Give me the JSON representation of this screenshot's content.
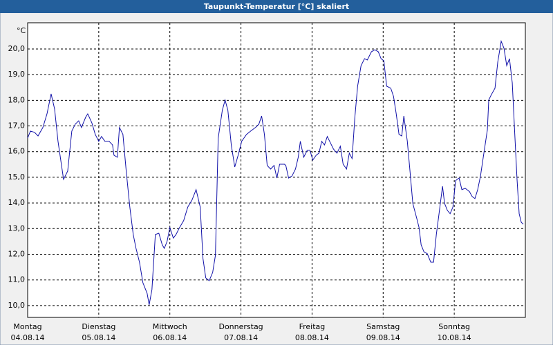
{
  "chart_data": {
    "type": "line",
    "title": "Taupunkt-Temperatur [°C] skaliert",
    "y_unit": "°C",
    "color": "#1010a8",
    "grid": true,
    "xlim": [
      0,
      7
    ],
    "ylim": [
      9.54,
      21.02
    ],
    "xticks": [
      {
        "value": 0,
        "label": "Montag"
      },
      {
        "value": 1,
        "label": "Dienstag"
      },
      {
        "value": 2,
        "label": "Mittwoch"
      },
      {
        "value": 3,
        "label": "Donnerstag"
      },
      {
        "value": 4,
        "label": "Freitag"
      },
      {
        "value": 5,
        "label": "Samstag"
      },
      {
        "value": 6,
        "label": "Sonntag"
      }
    ],
    "xtick_dates": [
      "04.08.14",
      "05.08.14",
      "06.08.14",
      "07.08.14",
      "08.08.14",
      "09.08.14",
      "10.08.14"
    ],
    "yticks": [
      {
        "value": 10,
        "label": "10,0"
      },
      {
        "value": 11,
        "label": "11,0"
      },
      {
        "value": 12,
        "label": "12,0"
      },
      {
        "value": 13,
        "label": "13,0"
      },
      {
        "value": 14,
        "label": "14,0"
      },
      {
        "value": 15,
        "label": "15,0"
      },
      {
        "value": 16,
        "label": "16,0"
      },
      {
        "value": 17,
        "label": "17,0"
      },
      {
        "value": 18,
        "label": "18,0"
      },
      {
        "value": 19,
        "label": "19,0"
      },
      {
        "value": 20,
        "label": "20,0"
      }
    ],
    "x": [
      0,
      0.039,
      0.097,
      0.146,
      0.214,
      0.272,
      0.33,
      0.379,
      0.427,
      0.505,
      0.563,
      0.621,
      0.67,
      0.718,
      0.757,
      0.816,
      0.845,
      0.903,
      0.951,
      1.0,
      1.039,
      1.087,
      1.146,
      1.194,
      1.214,
      1.262,
      1.291,
      1.34,
      1.388,
      1.437,
      1.485,
      1.524,
      1.573,
      1.621,
      1.68,
      1.709,
      1.748,
      1.796,
      1.845,
      1.893,
      1.922,
      1.961,
      2.0,
      2.049,
      2.087,
      2.136,
      2.194,
      2.252,
      2.311,
      2.369,
      2.427,
      2.466,
      2.505,
      2.553,
      2.602,
      2.641,
      2.68,
      2.738,
      2.777,
      2.816,
      2.864,
      2.913,
      2.961,
      3.01,
      3.078,
      3.136,
      3.204,
      3.252,
      3.291,
      3.33,
      3.369,
      3.417,
      3.466,
      3.505,
      3.544,
      3.612,
      3.631,
      3.67,
      3.718,
      3.767,
      3.806,
      3.835,
      3.883,
      3.932,
      3.971,
      4.01,
      4.058,
      4.097,
      4.136,
      4.175,
      4.214,
      4.262,
      4.301,
      4.35,
      4.398,
      4.437,
      4.485,
      4.524,
      4.563,
      4.602,
      4.641,
      4.689,
      4.738,
      4.777,
      4.835,
      4.883,
      4.932,
      4.971,
      5.01,
      5.049,
      5.107,
      5.146,
      5.184,
      5.223,
      5.262,
      5.291,
      5.34,
      5.379,
      5.417,
      5.476,
      5.505,
      5.534,
      5.573,
      5.621,
      5.67,
      5.709,
      5.748,
      5.786,
      5.835,
      5.864,
      5.903,
      5.942,
      5.981,
      6.019,
      6.068,
      6.107,
      6.155,
      6.214,
      6.252,
      6.291,
      6.33,
      6.369,
      6.408,
      6.466,
      6.485,
      6.524,
      6.573,
      6.612,
      6.66,
      6.699,
      6.738,
      6.777,
      6.816,
      6.854,
      6.883,
      6.913,
      6.942,
      6.971
    ],
    "values": [
      16.53,
      16.8,
      16.75,
      16.61,
      16.94,
      17.47,
      18.25,
      17.66,
      16.4,
      14.92,
      15.24,
      16.8,
      17.07,
      17.2,
      16.94,
      17.34,
      17.47,
      17.12,
      16.67,
      16.4,
      16.59,
      16.4,
      16.4,
      16.26,
      15.86,
      15.78,
      16.94,
      16.67,
      15.19,
      13.84,
      12.77,
      12.23,
      11.69,
      10.89,
      10.48,
      10.03,
      10.62,
      12.77,
      12.82,
      12.37,
      12.23,
      12.5,
      13.04,
      12.63,
      12.77,
      13.04,
      13.31,
      13.84,
      14.11,
      14.52,
      13.84,
      11.83,
      11.08,
      10.97,
      11.29,
      11.96,
      16.53,
      17.61,
      18.01,
      17.61,
      16.26,
      15.4,
      15.86,
      16.4,
      16.67,
      16.8,
      16.94,
      17.07,
      17.39,
      16.67,
      15.46,
      15.32,
      15.46,
      14.97,
      15.51,
      15.51,
      15.46,
      14.97,
      15.05,
      15.32,
      15.78,
      16.4,
      15.78,
      16.05,
      16.05,
      15.67,
      15.86,
      15.94,
      16.4,
      16.26,
      16.59,
      16.32,
      16.1,
      15.94,
      16.21,
      15.51,
      15.32,
      15.94,
      15.73,
      17.34,
      18.55,
      19.35,
      19.62,
      19.57,
      19.89,
      19.97,
      19.89,
      19.62,
      19.54,
      18.55,
      18.47,
      18.15,
      17.47,
      16.67,
      16.61,
      17.39,
      16.4,
      15.19,
      13.98,
      13.36,
      13.04,
      12.37,
      12.1,
      12.02,
      11.69,
      11.69,
      12.77,
      13.58,
      14.65,
      13.98,
      13.71,
      13.58,
      13.84,
      14.87,
      14.97,
      14.52,
      14.57,
      14.44,
      14.25,
      14.17,
      14.52,
      15.05,
      15.78,
      16.85,
      18.01,
      18.23,
      18.47,
      19.49,
      20.3,
      20.03,
      19.35,
      19.62,
      18.68,
      16.53,
      14.92,
      13.58,
      13.25,
      13.17
    ]
  }
}
